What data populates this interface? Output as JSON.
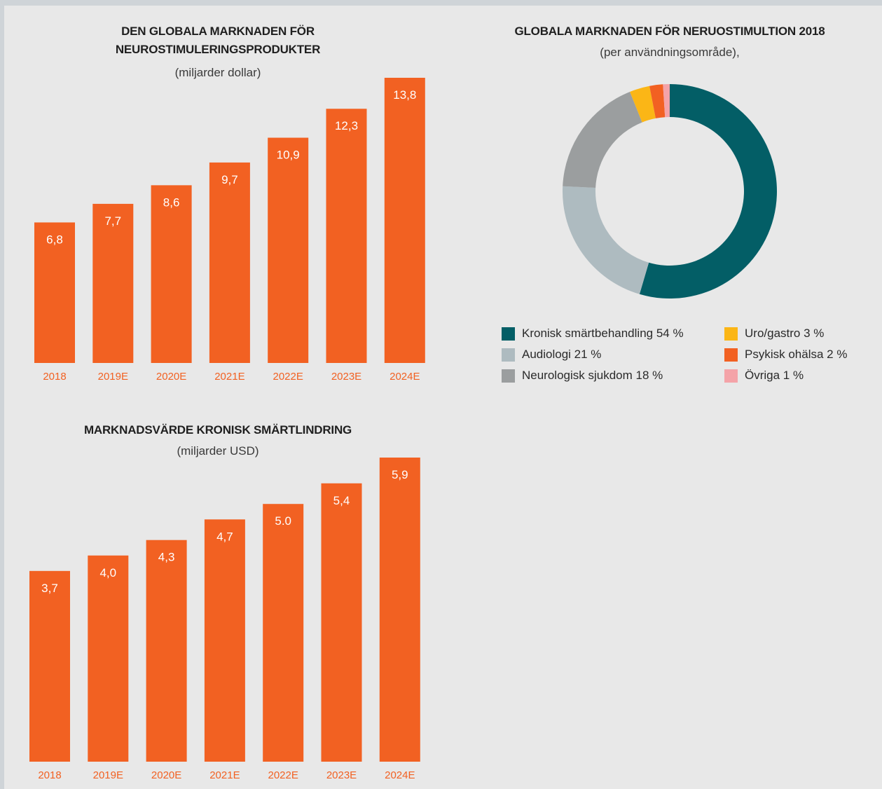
{
  "chart_data": [
    {
      "type": "bar",
      "title": "DEN GLOBALA MARKNADEN FÖR NEUROSTIMULERINGSPRODUKTER",
      "title_lines": [
        "DEN GLOBALA MARKNADEN FÖR",
        "NEUROSTIMULERINGSPRODUKTER"
      ],
      "subtitle": "(miljarder dollar)",
      "categories": [
        "2018",
        "2019E",
        "2020E",
        "2021E",
        "2022E",
        "2023E",
        "2024E"
      ],
      "values": [
        6.8,
        7.7,
        8.6,
        9.7,
        10.9,
        12.3,
        13.8
      ],
      "value_labels": [
        "6,8",
        "7,7",
        "8,6",
        "9,7",
        "10,9",
        "12,3",
        "13,8"
      ],
      "xlabel": "",
      "ylabel": "",
      "ylim": [
        0,
        13.8
      ],
      "grid": false,
      "bar_color": "#f26122",
      "label_color": "#ffffff",
      "tick_color": "#f26122"
    },
    {
      "type": "pie",
      "title": "GLOBALA MARKNADEN FÖR NERUOSTIMULTION 2018",
      "subtitle": "(per användningsområde),",
      "donut": true,
      "legend_position": "bottom",
      "slices": [
        {
          "label": "Kronisk smärtbehandling 54 %",
          "value": 54,
          "color": "#035e66"
        },
        {
          "label": "Audiologi 21 %",
          "value": 21,
          "color": "#aebbc0"
        },
        {
          "label": "Neurologisk sjukdom 18 %",
          "value": 18,
          "color": "#9b9e9f"
        },
        {
          "label": "Uro/gastro 3 %",
          "value": 3,
          "color": "#fbb616"
        },
        {
          "label": "Psykisk ohälsa 2 %",
          "value": 2,
          "color": "#f26122"
        },
        {
          "label": "Övriga 1 %",
          "value": 1,
          "color": "#f4a3a8"
        }
      ]
    },
    {
      "type": "bar",
      "title": "MARKNADSVÄRDE KRONISK SMÄRTLINDRING",
      "subtitle": "(miljarder USD)",
      "categories": [
        "2018",
        "2019E",
        "2020E",
        "2021E",
        "2022E",
        "2023E",
        "2024E"
      ],
      "values": [
        3.7,
        4.0,
        4.3,
        4.7,
        5.0,
        5.4,
        5.9
      ],
      "value_labels": [
        "3,7",
        "4,0",
        "4,3",
        "4,7",
        "5.0",
        "5,4",
        "5,9"
      ],
      "xlabel": "",
      "ylabel": "",
      "ylim": [
        0,
        5.9
      ],
      "grid": false,
      "bar_color": "#f26122",
      "label_color": "#ffffff",
      "tick_color": "#f26122"
    }
  ]
}
